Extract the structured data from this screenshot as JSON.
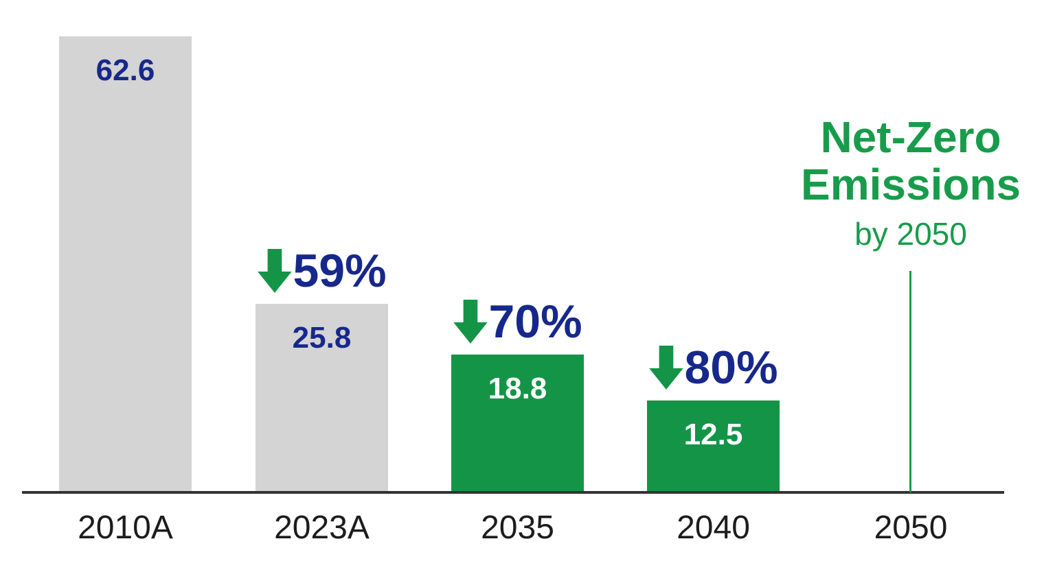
{
  "chart_data": {
    "type": "bar",
    "title": "",
    "categories": [
      "2010A",
      "2023A",
      "2035",
      "2040",
      "2050"
    ],
    "series": [
      {
        "name": "Emissions",
        "values": [
          62.6,
          25.8,
          18.8,
          12.5,
          0
        ]
      }
    ],
    "ylim": [
      0,
      62.6
    ],
    "grid": false,
    "legend": "none",
    "bars": [
      {
        "category": "2010A",
        "value": 62.6,
        "value_label": "62.6",
        "bar_color": "#d4d4d4",
        "label_color": "#17288c",
        "reduction": ""
      },
      {
        "category": "2023A",
        "value": 25.8,
        "value_label": "25.8",
        "bar_color": "#d4d4d4",
        "label_color": "#17288c",
        "reduction": "59%"
      },
      {
        "category": "2035",
        "value": 18.8,
        "value_label": "18.8",
        "bar_color": "#149447",
        "label_color": "#ffffff",
        "reduction": "70%"
      },
      {
        "category": "2040",
        "value": 12.5,
        "value_label": "12.5",
        "bar_color": "#149447",
        "label_color": "#ffffff",
        "reduction": "80%"
      }
    ],
    "annotation": {
      "line1": "Net-Zero",
      "line2": "Emissions",
      "line3": "by 2050",
      "category": "2050"
    },
    "colors": {
      "navy": "#17288c",
      "green": "#149447",
      "annotation_green": "#189c4b",
      "gray_bar": "#d4d4d4",
      "axis_line": "#333333",
      "tick_label": "#1c1c1c"
    }
  }
}
